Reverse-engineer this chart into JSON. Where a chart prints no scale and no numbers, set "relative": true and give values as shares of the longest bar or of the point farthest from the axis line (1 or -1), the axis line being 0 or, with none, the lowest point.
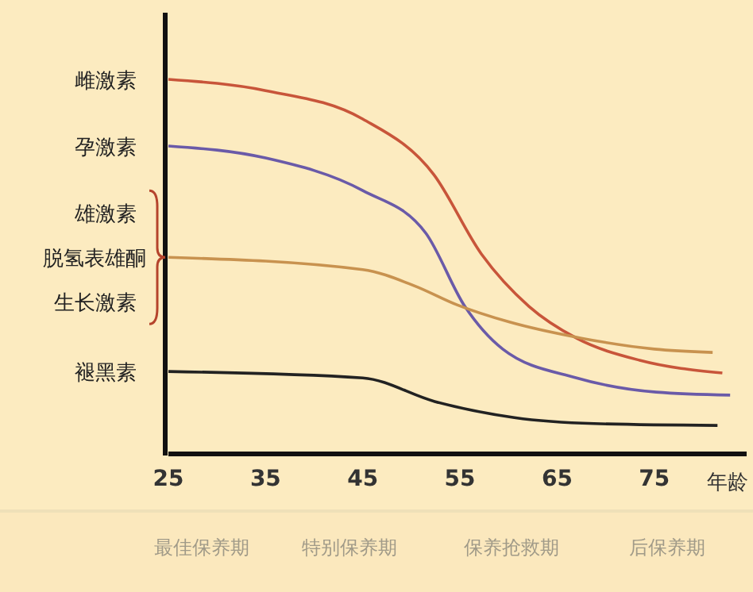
{
  "chart_data": {
    "type": "line",
    "relative": true,
    "xlabel": "年龄",
    "xlim": [
      25,
      84.5
    ],
    "xticks": [
      25,
      35,
      45,
      55,
      65,
      75
    ],
    "grid": false,
    "marker": "none",
    "line_style": "solid",
    "series": [
      {
        "name": "雌激素",
        "color": "#c8553a",
        "x": [
          25,
          35,
          45,
          52.3,
          57.2,
          62.1,
          67,
          73.5,
          82
        ],
        "values": [
          1.0,
          0.97,
          0.894,
          0.746,
          0.534,
          0.394,
          0.309,
          0.25,
          0.216
        ]
      },
      {
        "name": "孕激素",
        "color": "#6a5aa8",
        "x": [
          25,
          35,
          45,
          51.5,
          55.5,
          59.4,
          67,
          75.2,
          82.8
        ],
        "values": [
          0.822,
          0.79,
          0.703,
          0.589,
          0.394,
          0.28,
          0.203,
          0.165,
          0.157
        ]
      },
      {
        "name": "脱氢表雄酮",
        "color": "#c8924f",
        "x": [
          25,
          45,
          50.3,
          54.7,
          60.1,
          67.5,
          75,
          81
        ],
        "values": [
          0.525,
          0.492,
          0.449,
          0.398,
          0.352,
          0.309,
          0.28,
          0.271
        ]
      },
      {
        "name": "褪黑素",
        "color": "#222222",
        "x": [
          25,
          45,
          52.4,
          60.6,
          68.8,
          81.5
        ],
        "values": [
          0.22,
          0.203,
          0.14,
          0.097,
          0.081,
          0.076
        ]
      }
    ],
    "annotations": [
      "雄激素",
      "生长激素",
      "最佳保养期",
      "特别保养期",
      "保养抢救期",
      "后保养期"
    ]
  }
}
